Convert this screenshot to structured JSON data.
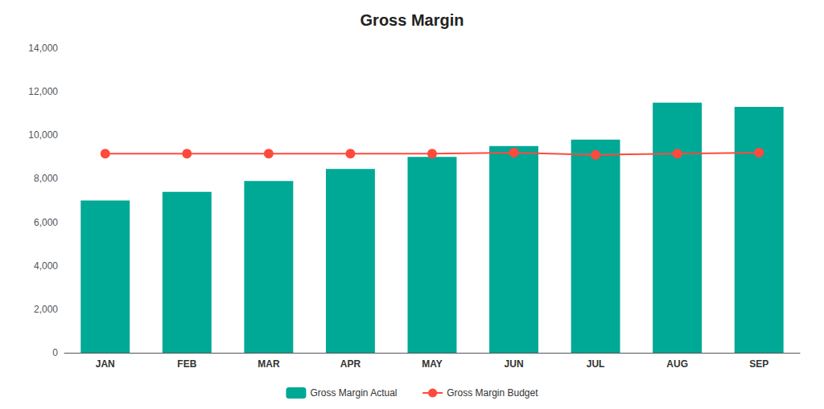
{
  "chart_data": {
    "type": "bar",
    "title": "Gross Margin",
    "categories": [
      "JAN",
      "FEB",
      "MAR",
      "APR",
      "MAY",
      "JUN",
      "JUL",
      "AUG",
      "SEP"
    ],
    "series": [
      {
        "name": "Gross Margin Actual",
        "type": "bar",
        "color": "#00A896",
        "values": [
          7000,
          7400,
          7900,
          8450,
          9000,
          9500,
          9800,
          11500,
          11300
        ]
      },
      {
        "name": "Gross Margin Budget",
        "type": "line",
        "color": "#FF4A3C",
        "marker": "circle",
        "values": [
          9150,
          9150,
          9150,
          9150,
          9150,
          9200,
          9100,
          9150,
          9200
        ]
      }
    ],
    "ylim": [
      0,
      14000
    ],
    "yticks": [
      0,
      {
        "value": 2000,
        "label": "2,000"
      },
      {
        "value": 4000,
        "label": "4,000"
      },
      {
        "value": 6000,
        "label": "6,000"
      },
      {
        "value": 8000,
        "label": "8,000"
      },
      {
        "value": 10000,
        "label": "10,000"
      },
      {
        "value": 12000,
        "label": "12,000"
      },
      {
        "value": 14000,
        "label": "14,000"
      }
    ],
    "grid": false,
    "legend": "bottom"
  }
}
